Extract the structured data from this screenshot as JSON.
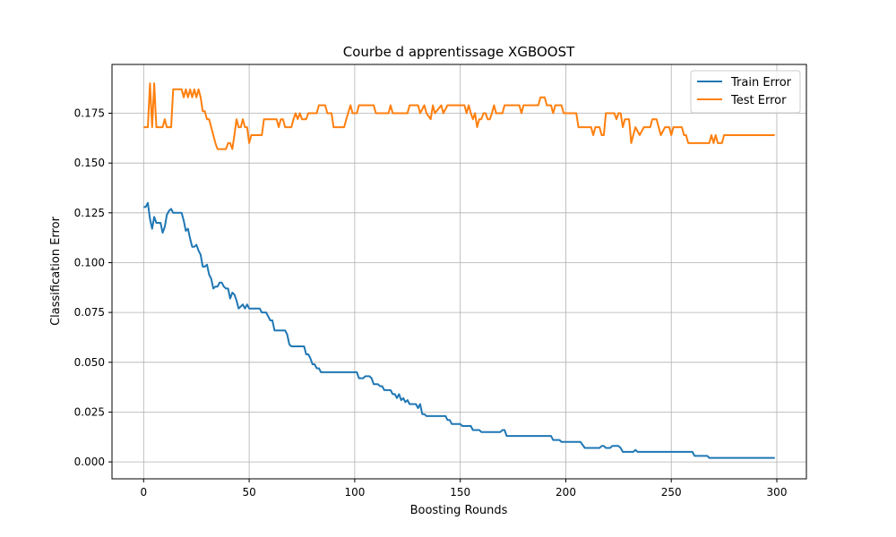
{
  "chart_data": {
    "type": "line",
    "title": "Courbe d apprentissage XGBOOST",
    "xlabel": "Boosting Rounds",
    "ylabel": "Classification Error",
    "xlim": [
      -15,
      314
    ],
    "ylim": [
      -0.0085,
      0.1995
    ],
    "xticks": [
      0,
      50,
      100,
      150,
      200,
      250,
      300
    ],
    "yticks": [
      0.0,
      0.025,
      0.05,
      0.075,
      0.1,
      0.125,
      0.15,
      0.175
    ],
    "ytick_labels": [
      "0.000",
      "0.025",
      "0.050",
      "0.075",
      "0.100",
      "0.125",
      "0.150",
      "0.175"
    ],
    "grid": true,
    "legend_position": "top-right",
    "series": [
      {
        "name": "Train Error",
        "color": "#1f77b4",
        "points": [
          [
            0,
            0.128
          ],
          [
            1,
            0.128
          ],
          [
            2,
            0.13
          ],
          [
            3,
            0.122
          ],
          [
            4,
            0.117
          ],
          [
            5,
            0.123
          ],
          [
            6,
            0.12
          ],
          [
            7,
            0.12
          ],
          [
            8,
            0.12
          ],
          [
            9,
            0.115
          ],
          [
            10,
            0.118
          ],
          [
            11,
            0.124
          ],
          [
            12,
            0.126
          ],
          [
            13,
            0.127
          ],
          [
            14,
            0.125
          ],
          [
            18,
            0.125
          ],
          [
            19,
            0.121
          ],
          [
            20,
            0.116
          ],
          [
            21,
            0.117
          ],
          [
            22,
            0.112
          ],
          [
            23,
            0.108
          ],
          [
            24,
            0.108
          ],
          [
            25,
            0.109
          ],
          [
            26,
            0.106
          ],
          [
            27,
            0.104
          ],
          [
            28,
            0.098
          ],
          [
            29,
            0.098
          ],
          [
            30,
            0.099
          ],
          [
            31,
            0.094
          ],
          [
            32,
            0.092
          ],
          [
            33,
            0.087
          ],
          [
            34,
            0.088
          ],
          [
            35,
            0.088
          ],
          [
            36,
            0.09
          ],
          [
            37,
            0.09
          ],
          [
            38,
            0.088
          ],
          [
            39,
            0.087
          ],
          [
            40,
            0.087
          ],
          [
            41,
            0.082
          ],
          [
            42,
            0.085
          ],
          [
            43,
            0.084
          ],
          [
            44,
            0.081
          ],
          [
            45,
            0.077
          ],
          [
            46,
            0.078
          ],
          [
            47,
            0.079
          ],
          [
            48,
            0.077
          ],
          [
            49,
            0.079
          ],
          [
            50,
            0.077
          ],
          [
            51,
            0.077
          ],
          [
            55,
            0.077
          ],
          [
            56,
            0.075
          ],
          [
            58,
            0.075
          ],
          [
            60,
            0.071
          ],
          [
            61,
            0.071
          ],
          [
            62,
            0.066
          ],
          [
            67,
            0.066
          ],
          [
            68,
            0.064
          ],
          [
            69,
            0.059
          ],
          [
            70,
            0.058
          ],
          [
            76,
            0.058
          ],
          [
            77,
            0.054
          ],
          [
            78,
            0.054
          ],
          [
            79,
            0.052
          ],
          [
            80,
            0.049
          ],
          [
            81,
            0.049
          ],
          [
            82,
            0.047
          ],
          [
            83,
            0.047
          ],
          [
            84,
            0.045
          ],
          [
            101,
            0.045
          ],
          [
            102,
            0.042
          ],
          [
            104,
            0.042
          ],
          [
            105,
            0.043
          ],
          [
            107,
            0.043
          ],
          [
            108,
            0.042
          ],
          [
            109,
            0.039
          ],
          [
            111,
            0.039
          ],
          [
            112,
            0.038
          ],
          [
            113,
            0.038
          ],
          [
            114,
            0.036
          ],
          [
            117,
            0.036
          ],
          [
            118,
            0.034
          ],
          [
            119,
            0.034
          ],
          [
            120,
            0.032
          ],
          [
            121,
            0.034
          ],
          [
            122,
            0.031
          ],
          [
            123,
            0.032
          ],
          [
            124,
            0.03
          ],
          [
            125,
            0.031
          ],
          [
            126,
            0.029
          ],
          [
            129,
            0.029
          ],
          [
            130,
            0.027
          ],
          [
            131,
            0.029
          ],
          [
            132,
            0.024
          ],
          [
            133,
            0.024
          ],
          [
            134,
            0.023
          ],
          [
            143,
            0.023
          ],
          [
            144,
            0.021
          ],
          [
            145,
            0.021
          ],
          [
            146,
            0.019
          ],
          [
            150,
            0.019
          ],
          [
            151,
            0.018
          ],
          [
            155,
            0.018
          ],
          [
            156,
            0.016
          ],
          [
            159,
            0.016
          ],
          [
            160,
            0.015
          ],
          [
            169,
            0.015
          ],
          [
            170,
            0.016
          ],
          [
            171,
            0.016
          ],
          [
            172,
            0.013
          ],
          [
            193,
            0.013
          ],
          [
            194,
            0.011
          ],
          [
            197,
            0.011
          ],
          [
            198,
            0.01
          ],
          [
            207,
            0.01
          ],
          [
            209,
            0.007
          ],
          [
            216,
            0.007
          ],
          [
            217,
            0.008
          ],
          [
            218,
            0.008
          ],
          [
            219,
            0.007
          ],
          [
            221,
            0.007
          ],
          [
            222,
            0.008
          ],
          [
            225,
            0.008
          ],
          [
            226,
            0.007
          ],
          [
            227,
            0.005
          ],
          [
            232,
            0.005
          ],
          [
            233,
            0.006
          ],
          [
            234,
            0.005
          ],
          [
            260,
            0.005
          ],
          [
            261,
            0.003
          ],
          [
            267,
            0.003
          ],
          [
            268,
            0.002
          ],
          [
            299,
            0.002
          ]
        ]
      },
      {
        "name": "Test Error",
        "color": "#ff7f0e",
        "points": [
          [
            0,
            0.168
          ],
          [
            2,
            0.168
          ],
          [
            3,
            0.19
          ],
          [
            4,
            0.168
          ],
          [
            5,
            0.19
          ],
          [
            6,
            0.168
          ],
          [
            9,
            0.168
          ],
          [
            10,
            0.172
          ],
          [
            11,
            0.168
          ],
          [
            13,
            0.168
          ],
          [
            14,
            0.187
          ],
          [
            18,
            0.187
          ],
          [
            19,
            0.183
          ],
          [
            20,
            0.187
          ],
          [
            21,
            0.183
          ],
          [
            22,
            0.187
          ],
          [
            23,
            0.183
          ],
          [
            24,
            0.187
          ],
          [
            25,
            0.183
          ],
          [
            26,
            0.187
          ],
          [
            27,
            0.183
          ],
          [
            28,
            0.176
          ],
          [
            29,
            0.176
          ],
          [
            30,
            0.172
          ],
          [
            31,
            0.172
          ],
          [
            32,
            0.168
          ],
          [
            33,
            0.164
          ],
          [
            34,
            0.16
          ],
          [
            35,
            0.157
          ],
          [
            39,
            0.157
          ],
          [
            40,
            0.16
          ],
          [
            41,
            0.16
          ],
          [
            42,
            0.157
          ],
          [
            43,
            0.164
          ],
          [
            44,
            0.172
          ],
          [
            45,
            0.168
          ],
          [
            46,
            0.168
          ],
          [
            47,
            0.172
          ],
          [
            48,
            0.168
          ],
          [
            49,
            0.168
          ],
          [
            50,
            0.16
          ],
          [
            51,
            0.164
          ],
          [
            56,
            0.164
          ],
          [
            57,
            0.172
          ],
          [
            63,
            0.172
          ],
          [
            64,
            0.168
          ],
          [
            65,
            0.172
          ],
          [
            66,
            0.172
          ],
          [
            67,
            0.168
          ],
          [
            70,
            0.168
          ],
          [
            71,
            0.172
          ],
          [
            72,
            0.175
          ],
          [
            73,
            0.172
          ],
          [
            74,
            0.175
          ],
          [
            75,
            0.172
          ],
          [
            77,
            0.172
          ],
          [
            78,
            0.175
          ],
          [
            82,
            0.175
          ],
          [
            83,
            0.179
          ],
          [
            86,
            0.179
          ],
          [
            87,
            0.175
          ],
          [
            89,
            0.175
          ],
          [
            90,
            0.168
          ],
          [
            95,
            0.168
          ],
          [
            96,
            0.172
          ],
          [
            98,
            0.179
          ],
          [
            99,
            0.175
          ],
          [
            101,
            0.175
          ],
          [
            102,
            0.179
          ],
          [
            109,
            0.179
          ],
          [
            110,
            0.175
          ],
          [
            116,
            0.175
          ],
          [
            117,
            0.179
          ],
          [
            118,
            0.175
          ],
          [
            125,
            0.175
          ],
          [
            126,
            0.179
          ],
          [
            130,
            0.179
          ],
          [
            131,
            0.175
          ],
          [
            133,
            0.179
          ],
          [
            134,
            0.175
          ],
          [
            136,
            0.172
          ],
          [
            137,
            0.179
          ],
          [
            138,
            0.175
          ],
          [
            141,
            0.179
          ],
          [
            142,
            0.175
          ],
          [
            144,
            0.179
          ],
          [
            152,
            0.179
          ],
          [
            153,
            0.175
          ],
          [
            154,
            0.179
          ],
          [
            155,
            0.175
          ],
          [
            156,
            0.172
          ],
          [
            157,
            0.175
          ],
          [
            158,
            0.168
          ],
          [
            159,
            0.172
          ],
          [
            160,
            0.172
          ],
          [
            161,
            0.175
          ],
          [
            162,
            0.175
          ],
          [
            163,
            0.172
          ],
          [
            164,
            0.172
          ],
          [
            165,
            0.175
          ],
          [
            166,
            0.179
          ],
          [
            167,
            0.175
          ],
          [
            170,
            0.175
          ],
          [
            171,
            0.179
          ],
          [
            178,
            0.179
          ],
          [
            179,
            0.175
          ],
          [
            180,
            0.179
          ],
          [
            187,
            0.179
          ],
          [
            188,
            0.183
          ],
          [
            190,
            0.183
          ],
          [
            191,
            0.179
          ],
          [
            193,
            0.179
          ],
          [
            194,
            0.175
          ],
          [
            195,
            0.179
          ],
          [
            198,
            0.179
          ],
          [
            199,
            0.175
          ],
          [
            205,
            0.175
          ],
          [
            206,
            0.168
          ],
          [
            212,
            0.168
          ],
          [
            213,
            0.164
          ],
          [
            214,
            0.168
          ],
          [
            216,
            0.168
          ],
          [
            217,
            0.164
          ],
          [
            218,
            0.164
          ],
          [
            219,
            0.175
          ],
          [
            223,
            0.175
          ],
          [
            224,
            0.172
          ],
          [
            225,
            0.175
          ],
          [
            226,
            0.175
          ],
          [
            227,
            0.168
          ],
          [
            228,
            0.172
          ],
          [
            230,
            0.172
          ],
          [
            231,
            0.16
          ],
          [
            232,
            0.164
          ],
          [
            233,
            0.168
          ],
          [
            235,
            0.164
          ],
          [
            237,
            0.168
          ],
          [
            240,
            0.168
          ],
          [
            241,
            0.172
          ],
          [
            243,
            0.172
          ],
          [
            244,
            0.168
          ],
          [
            245,
            0.164
          ],
          [
            247,
            0.168
          ],
          [
            249,
            0.168
          ],
          [
            250,
            0.164
          ],
          [
            251,
            0.168
          ],
          [
            255,
            0.168
          ],
          [
            256,
            0.164
          ],
          [
            257,
            0.164
          ],
          [
            258,
            0.16
          ],
          [
            268,
            0.16
          ],
          [
            269,
            0.164
          ],
          [
            270,
            0.16
          ],
          [
            271,
            0.164
          ],
          [
            272,
            0.16
          ],
          [
            274,
            0.16
          ],
          [
            275,
            0.164
          ],
          [
            299,
            0.164
          ]
        ]
      }
    ]
  }
}
